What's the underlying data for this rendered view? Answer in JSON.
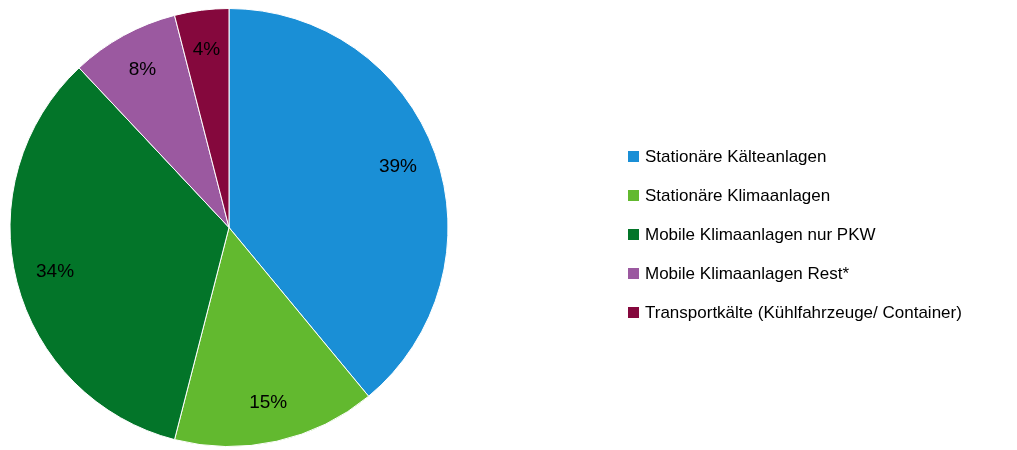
{
  "chart_data": {
    "type": "pie",
    "categories": [
      "Stationäre Kälteanlagen",
      "Stationäre Klimaanlagen",
      "Mobile Klimaanlagen nur PKW",
      "Mobile Klimaanlagen Rest*",
      "Transportkälte (Kühlfahrzeuge/ Container)"
    ],
    "values": [
      39,
      15,
      34,
      8,
      4
    ],
    "colors": [
      "#1a8fd6",
      "#62b92f",
      "#037529",
      "#9b59a0",
      "#85083d"
    ],
    "value_labels": [
      "39%",
      "15%",
      "34%",
      "8%",
      "4%"
    ],
    "legend": "right"
  }
}
